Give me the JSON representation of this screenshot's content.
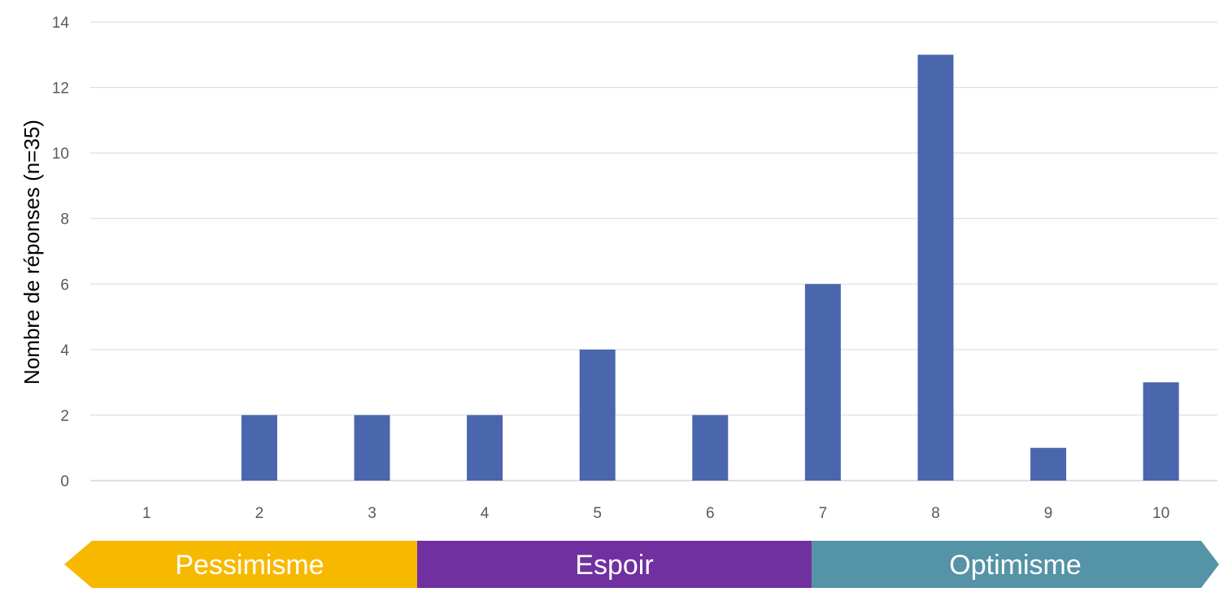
{
  "chart_data": {
    "type": "bar",
    "ylabel": "Nombre de réponses (n=35)",
    "xlabel": "",
    "categories": [
      "1",
      "2",
      "3",
      "4",
      "5",
      "6",
      "7",
      "8",
      "9",
      "10"
    ],
    "values": [
      0,
      2,
      2,
      2,
      4,
      2,
      6,
      13,
      1,
      3
    ],
    "ylim": [
      0,
      14
    ],
    "yticks": [
      0,
      2,
      4,
      6,
      8,
      10,
      12,
      14
    ],
    "grid": true,
    "bar_color": "#4a66ad",
    "bands": [
      {
        "label": "Pessimisme",
        "color": "#f7b900",
        "from": 0.5,
        "to": 3.4
      },
      {
        "label": "Espoir",
        "color": "#7030a0",
        "from": 3.4,
        "to": 6.9
      },
      {
        "label": "Optimisme",
        "color": "#5593a6",
        "from": 6.9,
        "to": 10.5
      }
    ]
  }
}
